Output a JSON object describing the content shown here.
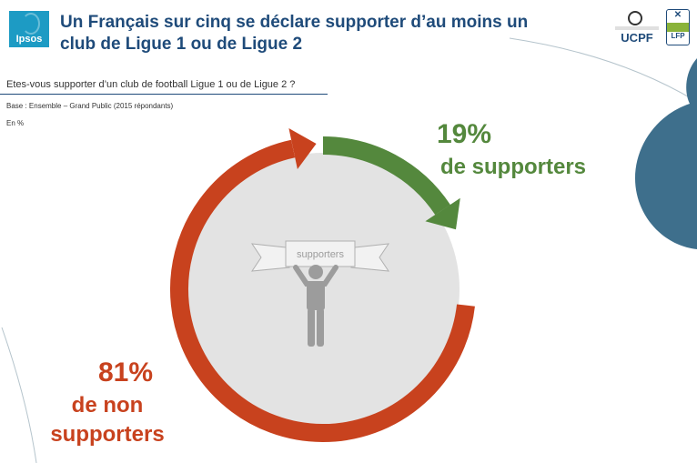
{
  "header": {
    "title": "Un Français sur cinq se déclare supporter d’au moins un club de Ligue 1 ou de Ligue 2",
    "logo_left": "Ipsos",
    "logo_right_1": "UCPF",
    "logo_right_2": "LFP"
  },
  "question": "Etes-vous supporter d’un club de football Ligue 1 ou de Ligue 2 ?",
  "base_note": "Base : Ensemble – Grand Public  (2015 répondants)",
  "unit_note": "En %",
  "colors": {
    "supporters": "#54883d",
    "non_supporters": "#c8421e",
    "center": "#e3e3e3",
    "figure": "#9c9c9c",
    "title": "#1f4b7a",
    "deco": "#3e6f8c"
  },
  "chart_data": {
    "type": "pie",
    "variant": "donut-ring",
    "categories": [
      "supporters",
      "non supporters"
    ],
    "values": [
      19,
      81
    ],
    "unit": "%",
    "center_label": "supporters",
    "labels": {
      "supporters_pct": "19%",
      "supporters_text": "de supporters",
      "non_supporters_pct": "81%",
      "non_supporters_line1": "de non",
      "non_supporters_line2": "supporters"
    }
  }
}
